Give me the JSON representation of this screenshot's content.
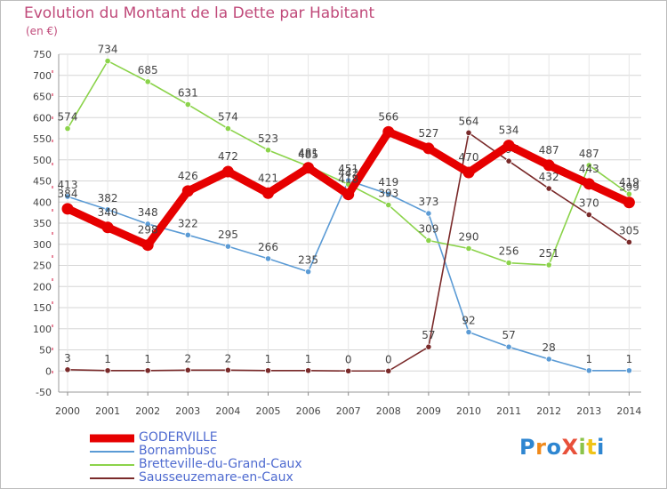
{
  "chart_data": {
    "type": "line",
    "title": "Evolution du Montant de la Dette par Habitant",
    "subtitle": "(en €)",
    "xlabel": "",
    "ylabel": "",
    "x": [
      "2000",
      "2001",
      "2002",
      "2003",
      "2004",
      "2005",
      "2006",
      "2007",
      "2008",
      "2009",
      "2010",
      "2011",
      "2012",
      "2013",
      "2014"
    ],
    "ylim": [
      -50,
      750
    ],
    "yticks": [
      -50,
      0,
      50,
      100,
      150,
      200,
      250,
      300,
      350,
      400,
      450,
      500,
      550,
      600,
      650,
      700,
      750
    ],
    "grid": true,
    "legend_position": "bottom-left",
    "series": [
      {
        "name": "Bornambusc",
        "color": "#5b9bd5",
        "values": [
          413,
          382,
          348,
          322,
          295,
          266,
          235,
          451,
          419,
          373,
          92,
          57,
          28,
          1,
          1
        ],
        "labels": [
          "413",
          "382",
          "348",
          "322",
          "295",
          "266",
          "235",
          "451",
          "419",
          "373",
          "92",
          "57",
          "28",
          "1",
          "1"
        ]
      },
      {
        "name": "Bretteville-du-Grand-Caux",
        "color": "#8bd34a",
        "values": [
          574,
          734,
          685,
          631,
          574,
          523,
          485,
          442,
          393,
          309,
          290,
          256,
          251,
          487,
          419
        ],
        "labels": [
          "574",
          "734",
          "685",
          "631",
          "574",
          "523",
          "485",
          "442",
          "393",
          "309",
          "290",
          "256",
          "251",
          "487",
          "419"
        ]
      },
      {
        "name": "Sausseuzemare-en-Caux",
        "color": "#7a2a2a",
        "values": [
          3,
          1,
          1,
          2,
          2,
          1,
          1,
          0,
          0,
          57,
          564,
          497,
          432,
          370,
          305
        ],
        "labels": [
          "3",
          "1",
          "1",
          "2",
          "2",
          "1",
          "1",
          "0",
          "0",
          "57",
          "564",
          "497",
          "432",
          "370",
          "305"
        ]
      },
      {
        "name": "GODERVILLE",
        "color": "#e60000",
        "values": [
          384,
          340,
          298,
          426,
          472,
          421,
          481,
          418,
          566,
          527,
          470,
          534,
          487,
          443,
          399
        ],
        "labels": [
          "384",
          "340",
          "298",
          "426",
          "472",
          "421",
          "481",
          "418",
          "566",
          "527",
          "470",
          "534",
          "487",
          "443",
          "399"
        ]
      }
    ]
  },
  "legend": {
    "items": [
      {
        "name": "GODERVILLE",
        "color": "#e60000"
      },
      {
        "name": "Bornambusc",
        "color": "#5b9bd5"
      },
      {
        "name": "Bretteville-du-Grand-Caux",
        "color": "#8bd34a"
      },
      {
        "name": "Sausseuzemare-en-Caux",
        "color": "#7a2a2a"
      }
    ]
  },
  "branding": {
    "logo_text": "ProXiti",
    "logo_colors": [
      "#2e86d1",
      "#f08a1c",
      "#2e86d1",
      "#e8503a",
      "#8bc34a",
      "#f0c419",
      "#2e86d1"
    ]
  }
}
